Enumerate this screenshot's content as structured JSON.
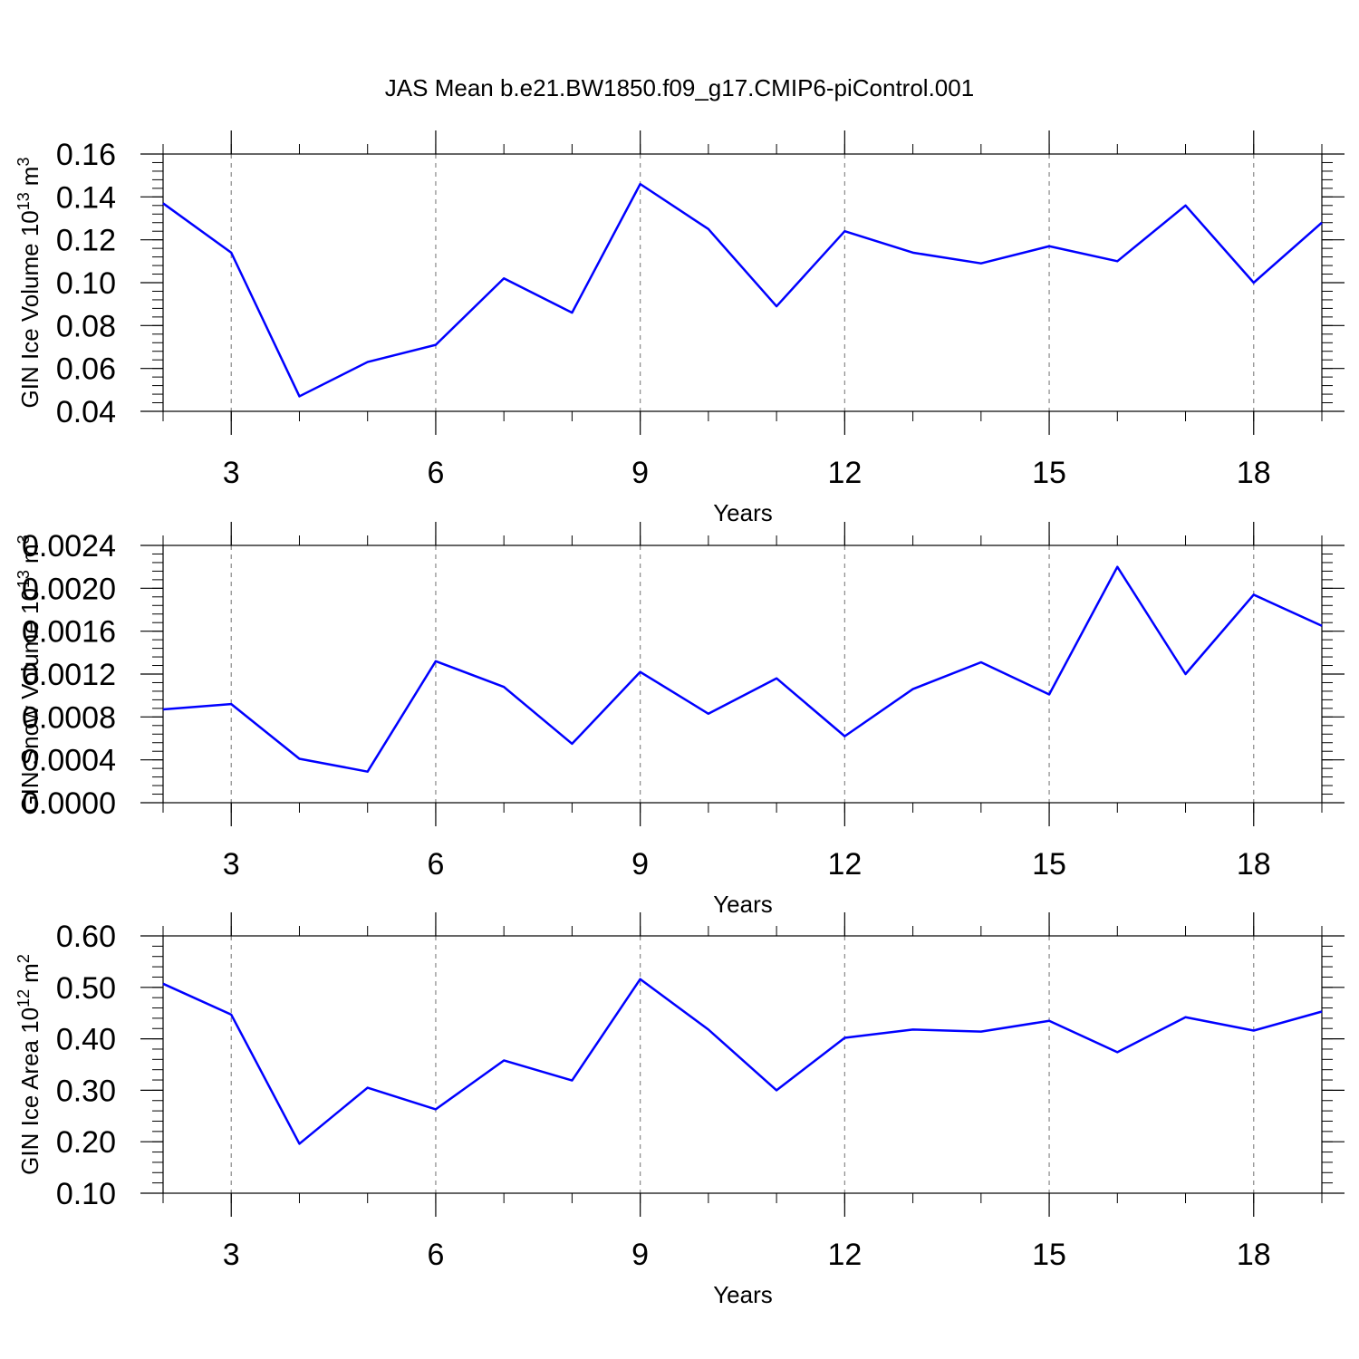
{
  "chart_data": [
    {
      "type": "line",
      "title": "JAS Mean b.e21.BW1850.f09_g17.CMIP6-piControl.001",
      "ylabel": "GIN Ice Volume 10",
      "ylabel_exp": "13",
      "ylabel_unit": "m",
      "ylabel_unit_exp": "3",
      "xlabel": "Years",
      "x": [
        2,
        3,
        4,
        5,
        6,
        7,
        8,
        9,
        10,
        11,
        12,
        13,
        14,
        15,
        16,
        17,
        18,
        19
      ],
      "series": [
        {
          "color": "#0000ff",
          "values": [
            0.137,
            0.114,
            0.047,
            0.063,
            0.071,
            0.102,
            0.086,
            0.146,
            0.125,
            0.089,
            0.124,
            0.114,
            0.109,
            0.117,
            0.11,
            0.136,
            0.1,
            0.128
          ]
        }
      ],
      "xlim": [
        2,
        19
      ],
      "xticks": [
        3,
        6,
        9,
        12,
        15,
        18
      ],
      "ylim": [
        0.04,
        0.16
      ],
      "yticks": [
        0.04,
        0.06,
        0.08,
        {
          "value": 0.1,
          "label": "0.10"
        },
        0.12,
        0.14,
        0.16
      ],
      "grid": true
    },
    {
      "type": "line",
      "ylabel": "GIN Snow Volume 10",
      "ylabel_exp": "13",
      "ylabel_unit": "m",
      "ylabel_unit_exp": "3",
      "xlabel": "Years",
      "x": [
        2,
        3,
        4,
        5,
        6,
        7,
        8,
        9,
        10,
        11,
        12,
        13,
        14,
        15,
        16,
        17,
        18,
        19
      ],
      "series": [
        {
          "color": "#0000ff",
          "values": [
            0.00087,
            0.00092,
            0.00041,
            0.00029,
            0.00132,
            0.00108,
            0.00055,
            0.00122,
            0.00083,
            0.00116,
            0.00062,
            0.00106,
            0.00131,
            0.00101,
            0.0022,
            0.0012,
            0.00194,
            0.00165
          ]
        }
      ],
      "xlim": [
        2,
        19
      ],
      "xticks": [
        3,
        6,
        9,
        12,
        15,
        18
      ],
      "ylim": [
        0,
        0.0024
      ],
      "yticks": [
        {
          "value": 0,
          "label": "0.0000"
        },
        0.0004,
        0.0008,
        0.0012,
        0.0016,
        {
          "value": 0.002,
          "label": "0.0020"
        },
        0.0024
      ],
      "grid": true
    },
    {
      "type": "line",
      "ylabel": "GIN Ice Area 10",
      "ylabel_exp": "12",
      "ylabel_unit": "m",
      "ylabel_unit_exp": "2",
      "xlabel": "Years",
      "x": [
        2,
        3,
        4,
        5,
        6,
        7,
        8,
        9,
        10,
        11,
        12,
        13,
        14,
        15,
        16,
        17,
        18,
        19
      ],
      "series": [
        {
          "color": "#0000ff",
          "values": [
            0.507,
            0.447,
            0.196,
            0.305,
            0.263,
            0.358,
            0.319,
            0.516,
            0.418,
            0.3,
            0.402,
            0.418,
            0.414,
            0.435,
            0.374,
            0.442,
            0.416,
            0.453
          ]
        }
      ],
      "xlim": [
        2,
        19
      ],
      "xticks": [
        3,
        6,
        9,
        12,
        15,
        18
      ],
      "ylim": [
        0.1,
        0.6
      ],
      "yticks": [
        {
          "value": 0.1,
          "label": "0.10"
        },
        {
          "value": 0.2,
          "label": "0.20"
        },
        {
          "value": 0.3,
          "label": "0.30"
        },
        {
          "value": 0.4,
          "label": "0.40"
        },
        {
          "value": 0.5,
          "label": "0.50"
        },
        {
          "value": 0.6,
          "label": "0.60"
        }
      ],
      "grid": true
    }
  ]
}
